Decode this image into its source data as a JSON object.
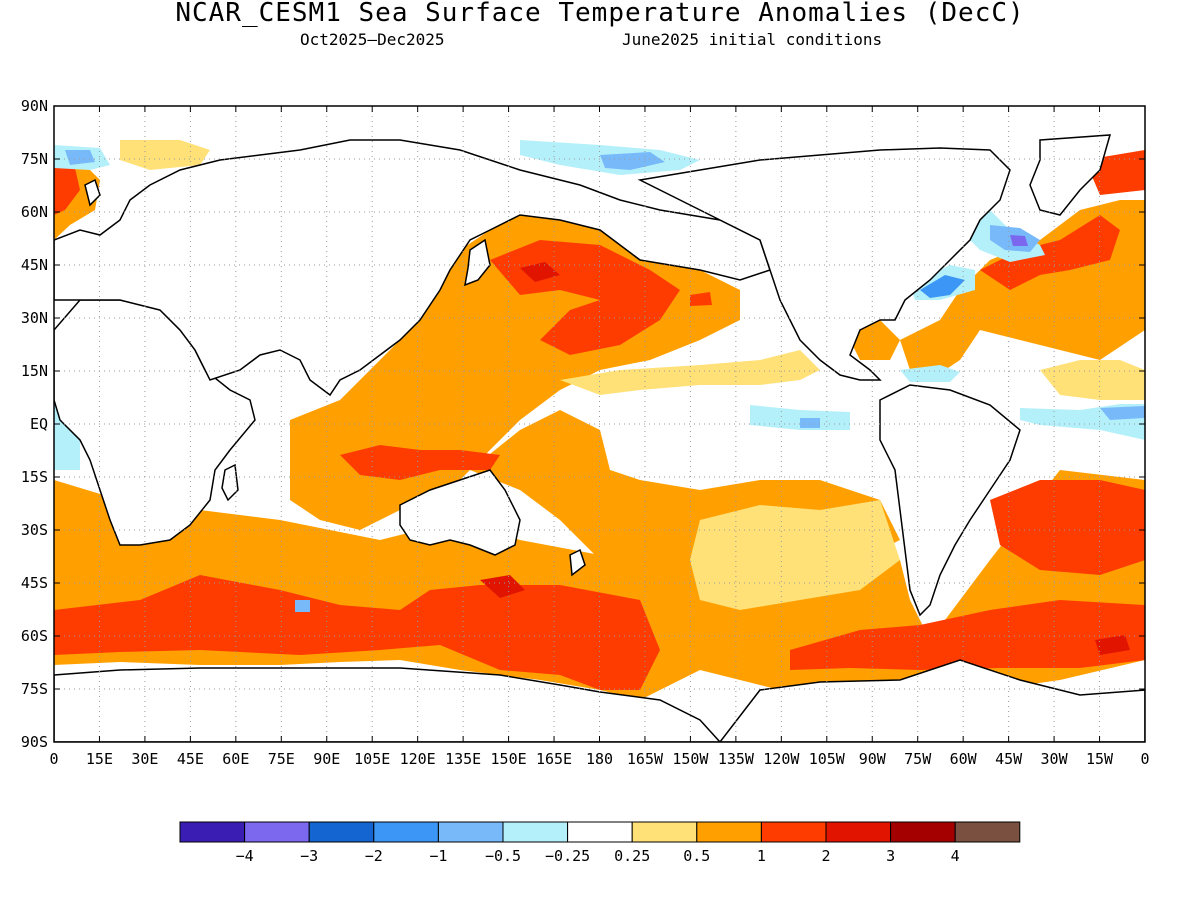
{
  "title": "NCAR_CESM1 Sea Surface Temperature Anomalies (DecC)",
  "subtitle_left": "Oct2025–Dec2025",
  "subtitle_right": "June2025 initial conditions",
  "chart_data": {
    "type": "heatmap",
    "projection": "equirectangular",
    "grid": "dotted",
    "legend": "bottom",
    "lon_ticks": [
      "0",
      "15E",
      "30E",
      "45E",
      "60E",
      "75E",
      "90E",
      "105E",
      "120E",
      "135E",
      "150E",
      "165E",
      "180",
      "165W",
      "150W",
      "135W",
      "120W",
      "105W",
      "90W",
      "75W",
      "60W",
      "45W",
      "30W",
      "15W",
      "0"
    ],
    "lat_ticks": [
      "90N",
      "75N",
      "60N",
      "45N",
      "30N",
      "15N",
      "EQ",
      "15S",
      "30S",
      "45S",
      "60S",
      "75S",
      "90S"
    ],
    "colorbar": {
      "labels": [
        "-4",
        "-3",
        "-2",
        "-1",
        "-0.5",
        "-0.25",
        "0.25",
        "0.5",
        "1",
        "2",
        "3",
        "4"
      ],
      "colors": [
        "#3a1eb4",
        "#7b68ee",
        "#1464d2",
        "#3c96f5",
        "#78b9fa",
        "#b4f0fa",
        "#ffffff",
        "#ffe178",
        "#ffa000",
        "#ff3c00",
        "#e11400",
        "#a50000",
        "#7a5040"
      ]
    }
  }
}
